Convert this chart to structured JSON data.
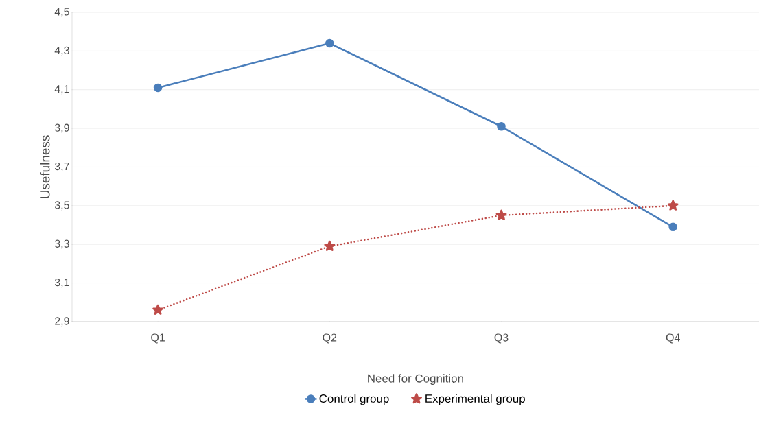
{
  "chart_data": {
    "type": "line",
    "xlabel": "Need for Cognition",
    "ylabel": "Usefulness",
    "categories": [
      "Q1",
      "Q2",
      "Q3",
      "Q4"
    ],
    "series": [
      {
        "name": "Control group",
        "color": "#4a7ebb",
        "values": [
          4.11,
          4.34,
          3.91,
          3.39
        ],
        "marker": "circle",
        "line_style": "solid"
      },
      {
        "name": "Experimental group",
        "color": "#be4b48",
        "values": [
          2.96,
          3.29,
          3.45,
          3.5
        ],
        "marker": "star",
        "line_style": "dotted"
      }
    ],
    "ylim": [
      2.9,
      4.5
    ],
    "yticks": [
      {
        "value": 2.9,
        "label": "2,9"
      },
      {
        "value": 3.1,
        "label": "3,1"
      },
      {
        "value": 3.3,
        "label": "3,3"
      },
      {
        "value": 3.5,
        "label": "3,5"
      },
      {
        "value": 3.7,
        "label": "3,7"
      },
      {
        "value": 3.9,
        "label": "3,9"
      },
      {
        "value": 4.1,
        "label": "4,1"
      },
      {
        "value": 4.3,
        "label": "4,3"
      },
      {
        "value": 4.5,
        "label": "4,5"
      }
    ],
    "grid": "y",
    "legend": "bottom"
  }
}
